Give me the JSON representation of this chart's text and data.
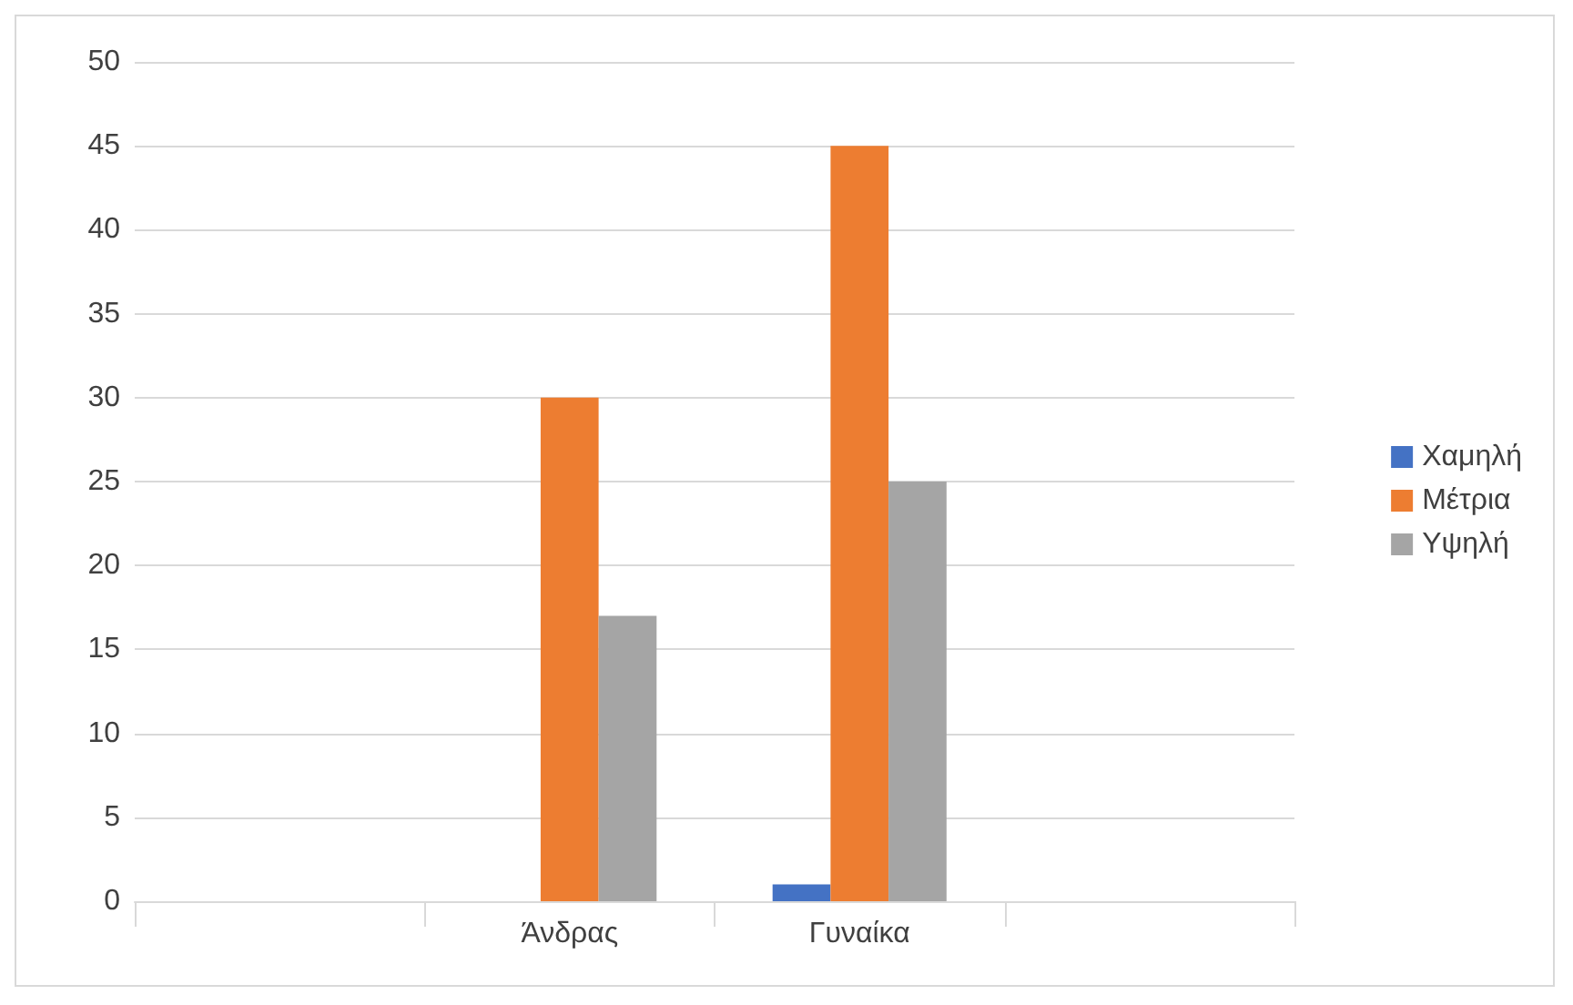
{
  "chart_data": {
    "type": "bar",
    "categories": [
      null,
      "Άνδρας",
      "Γυναίκα",
      null
    ],
    "series": [
      {
        "name": "Χαμηλή",
        "color": "#4472c4",
        "values": [
          null,
          0,
          1,
          null
        ]
      },
      {
        "name": "Μέτρια",
        "color": "#ed7d31",
        "values": [
          null,
          30,
          45,
          null
        ]
      },
      {
        "name": "Υψηλή",
        "color": "#a5a5a5",
        "values": [
          null,
          17,
          25,
          null
        ]
      }
    ],
    "ylim": [
      0,
      50
    ],
    "yticks": [
      0,
      5,
      10,
      15,
      20,
      25,
      30,
      35,
      40,
      45,
      50
    ],
    "grid": "y",
    "legend": "right"
  }
}
